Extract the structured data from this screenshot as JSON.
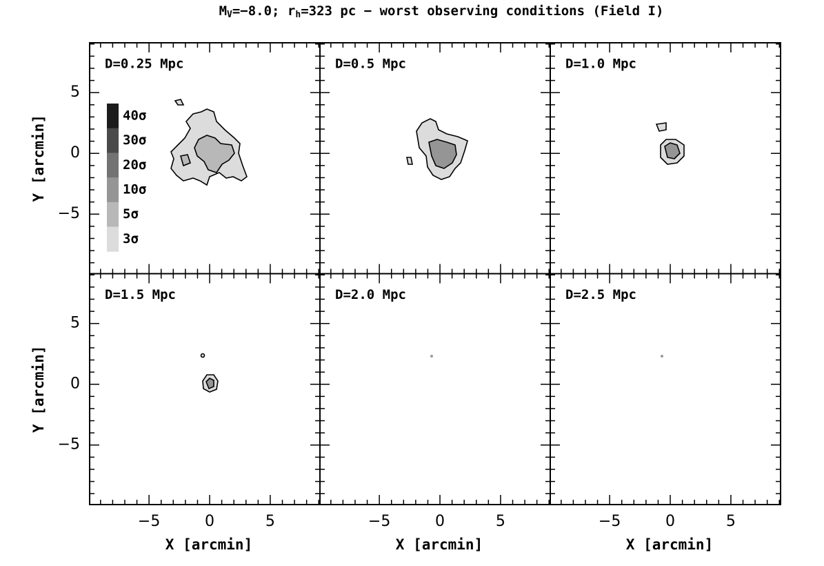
{
  "chart_data": {
    "type": "contour",
    "title_parts": [
      {
        "text": "M"
      },
      {
        "text": "V",
        "sub": true
      },
      {
        "text": "=−8.0; r"
      },
      {
        "text": "h",
        "sub": true
      },
      {
        "text": "=323 pc − worst observing conditions (Field I)"
      }
    ],
    "xlabel": "X [arcmin]",
    "ylabel": "Y [arcmin]",
    "xlim": [
      -9.9,
      9.1
    ],
    "ylim": [
      -9.9,
      9.1
    ],
    "xticks": [
      {
        "value": -5,
        "label": "−5"
      },
      0,
      5
    ],
    "yticks": [
      {
        "value": -5,
        "label": "−5"
      },
      0,
      5
    ],
    "minor_ticks": [
      -9,
      -8,
      -7,
      -6,
      -4,
      -3,
      -2,
      -1,
      1,
      2,
      3,
      4,
      6,
      7,
      8,
      9
    ],
    "levels": [
      {
        "value": 40,
        "label": "40σ",
        "color": "#1c1c1c"
      },
      {
        "value": 30,
        "label": "30σ",
        "color": "#4a4a4a"
      },
      {
        "value": 20,
        "label": "20σ",
        "color": "#737373"
      },
      {
        "value": 10,
        "label": "10σ",
        "color": "#959595"
      },
      {
        "value": 5,
        "label": "5σ",
        "color": "#b8b8b8"
      },
      {
        "value": 3,
        "label": "3σ",
        "color": "#dcdcdc"
      }
    ],
    "panels": [
      {
        "label": "D=0.25 Mpc"
      },
      {
        "label": "D=0.5 Mpc"
      },
      {
        "label": "D=1.0 Mpc"
      },
      {
        "label": "D=1.5 Mpc"
      },
      {
        "label": "D=2.0 Mpc"
      },
      {
        "label": "D=2.5 Mpc"
      }
    ]
  }
}
